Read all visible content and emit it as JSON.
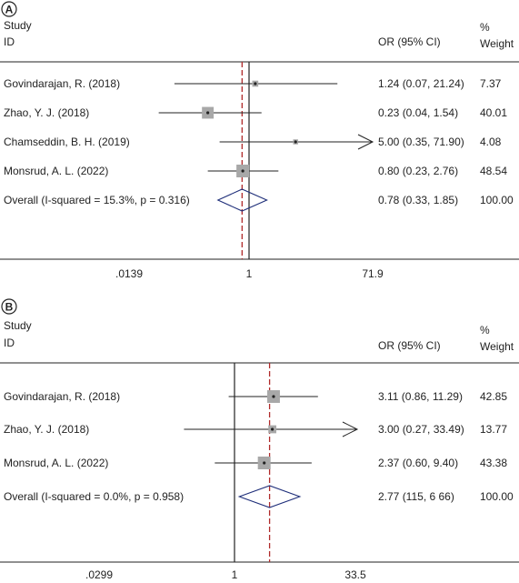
{
  "chart_data": [
    {
      "type": "forest",
      "panel_label": "A",
      "header_study": "Study",
      "header_id": "ID",
      "header_or": "OR (95% CI)",
      "header_pct": "%",
      "header_weight": "Weight",
      "x_scale": "log",
      "xlim": [
        0.0139,
        71.9
      ],
      "x_ticks": [
        ".0139",
        "1",
        "71.9"
      ],
      "null_line": 1,
      "pooled_line": 0.78,
      "studies": [
        {
          "label": "Govindarajan, R. (2018)",
          "or": 1.24,
          "lo": 0.07,
          "hi": 21.24,
          "ci_text": "1.24 (0.07, 21.24)",
          "weight": "7.37"
        },
        {
          "label": "Zhao, Y. J. (2018)",
          "or": 0.23,
          "lo": 0.04,
          "hi": 1.54,
          "ci_text": "0.23 (0.04, 1.54)",
          "weight": "40.01"
        },
        {
          "label": "Chamseddin, B. H. (2019)",
          "or": 5.0,
          "lo": 0.35,
          "hi": 71.9,
          "ci_text": "5.00 (0.35, 71.90)",
          "weight": "4.08",
          "arrow_right": true
        },
        {
          "label": "Monsrud, A. L. (2022)",
          "or": 0.8,
          "lo": 0.23,
          "hi": 2.76,
          "ci_text": "0.80 (0.23, 2.76)",
          "weight": "48.54"
        }
      ],
      "overall": {
        "label": "Overall (I-squared = 15.3%, p = 0.316)",
        "or": 0.78,
        "lo": 0.33,
        "hi": 1.85,
        "ci_text": "0.78 (0.33, 1.85)",
        "weight": "100.00"
      }
    },
    {
      "type": "forest",
      "panel_label": "B",
      "header_study": "Study",
      "header_id": "ID",
      "header_or": "OR (95% CI)",
      "header_pct": "%",
      "header_weight": "Weight",
      "x_scale": "log",
      "xlim": [
        0.0299,
        33.5
      ],
      "x_ticks": [
        ".0299",
        "1",
        "33.5"
      ],
      "null_line": 1,
      "pooled_line": 2.77,
      "studies": [
        {
          "label": "Govindarajan, R. (2018)",
          "or": 3.11,
          "lo": 0.86,
          "hi": 11.29,
          "ci_text": "3.11 (0.86, 11.29)",
          "weight": "42.85"
        },
        {
          "label": "Zhao, Y. J. (2018)",
          "or": 3.0,
          "lo": 0.27,
          "hi": 33.49,
          "ci_text": "3.00 (0.27, 33.49)",
          "weight": "13.77",
          "arrow_right": true
        },
        {
          "label": "Monsrud, A. L. (2022)",
          "or": 2.37,
          "lo": 0.6,
          "hi": 9.4,
          "ci_text": "2.37 (0.60, 9.40)",
          "weight": "43.38"
        }
      ],
      "overall": {
        "label": "Overall (I-squared = 0.0%, p = 0.958)",
        "or": 2.77,
        "lo": 1.15,
        "hi": 6.66,
        "ci_text": "2.77 (115, 6 66)",
        "weight": "100.00"
      }
    }
  ]
}
